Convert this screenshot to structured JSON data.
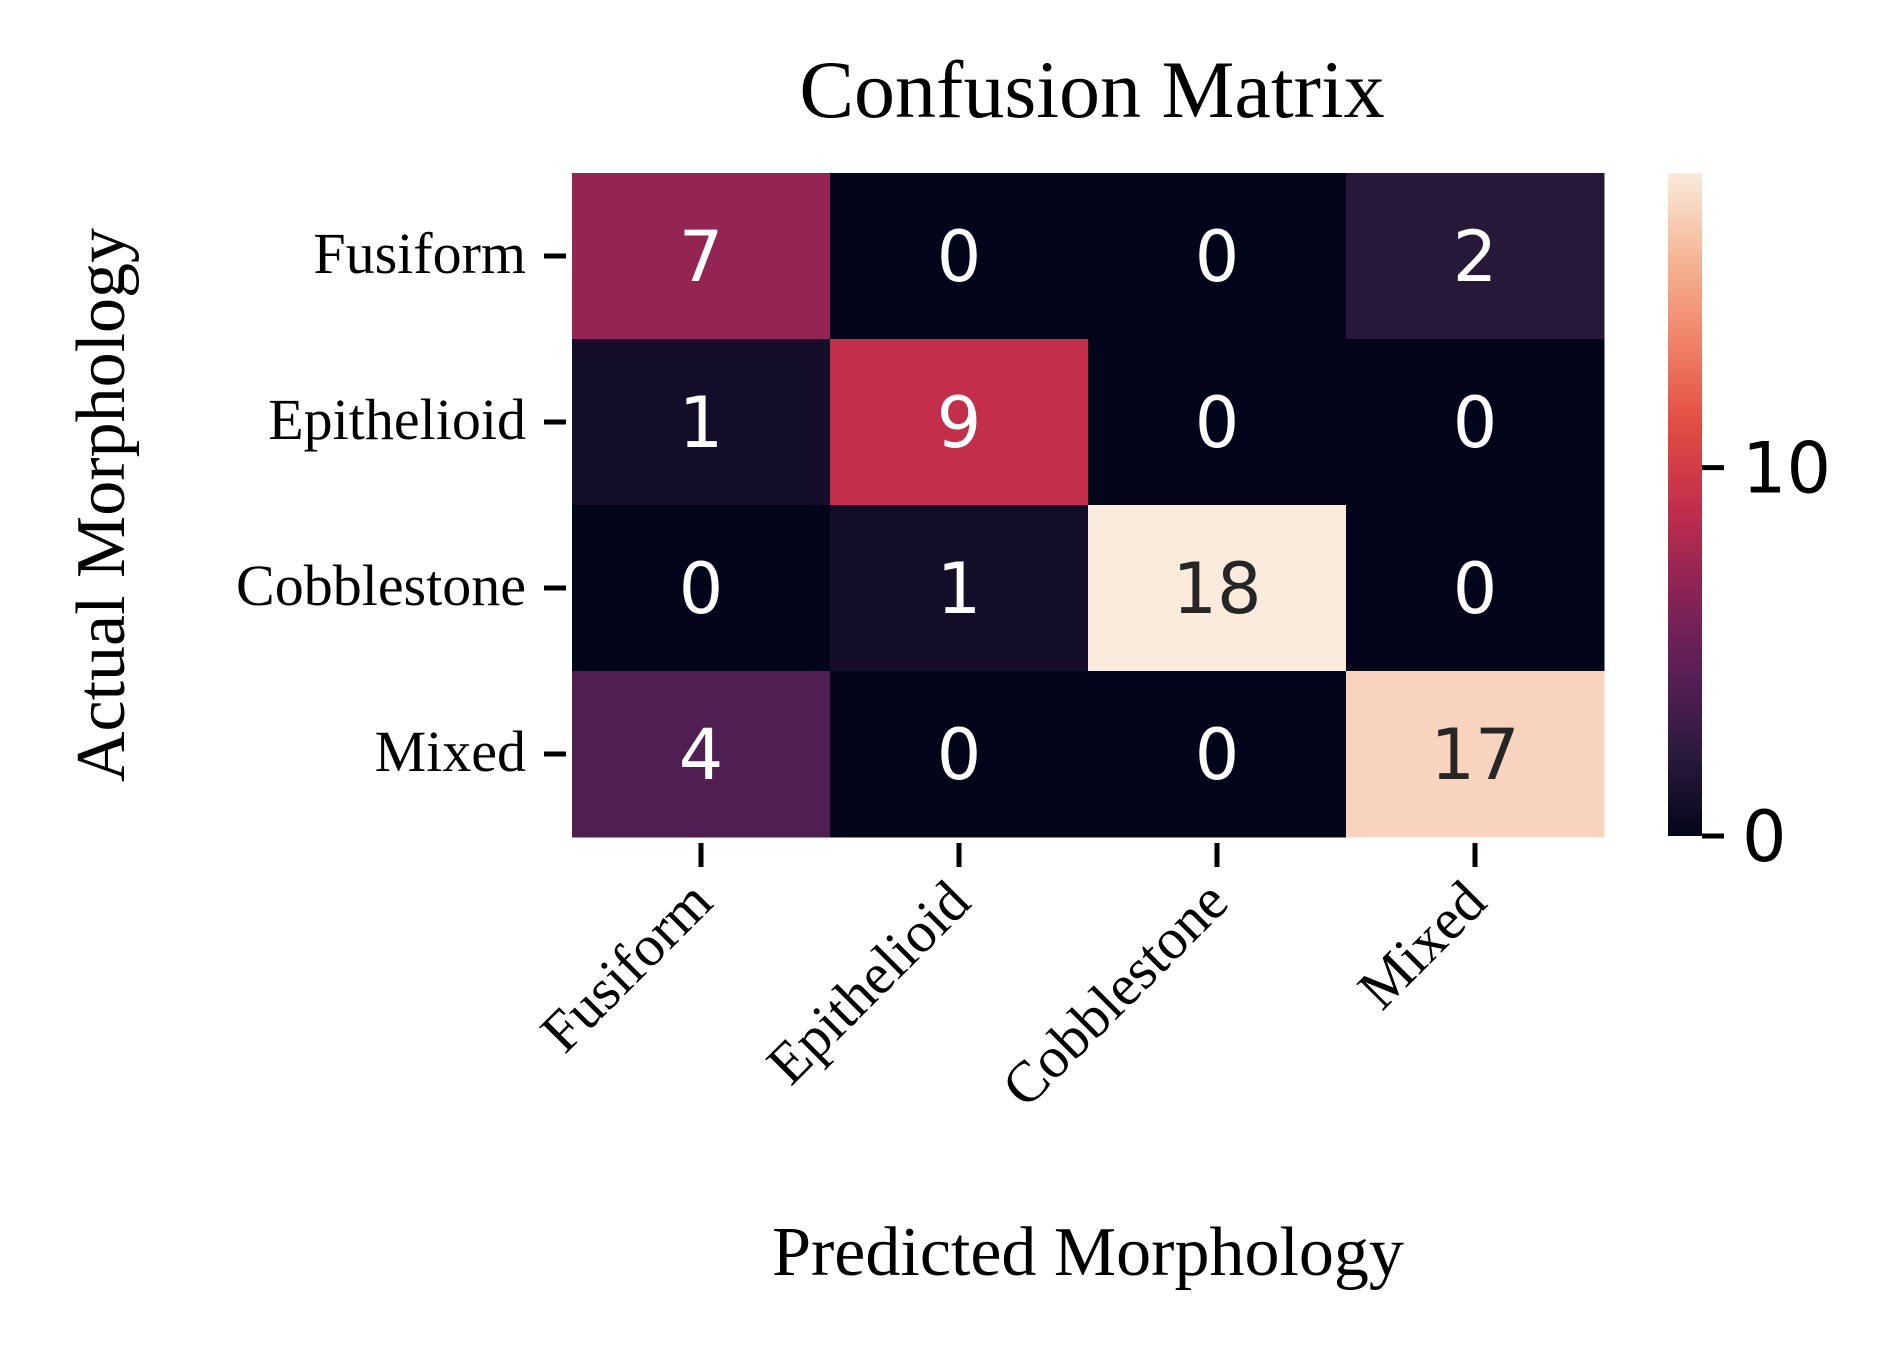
{
  "chart_data": {
    "type": "heatmap",
    "title": "Confusion Matrix",
    "xlabel": "Predicted Morphology",
    "ylabel": "Actual Morphology",
    "x_categories": [
      "Fusiform",
      "Epithelioid",
      "Cobblestone",
      "Mixed"
    ],
    "y_categories": [
      "Fusiform",
      "Epithelioid",
      "Cobblestone",
      "Mixed"
    ],
    "values": [
      [
        7,
        0,
        0,
        2
      ],
      [
        1,
        9,
        0,
        0
      ],
      [
        0,
        1,
        18,
        0
      ],
      [
        4,
        0,
        0,
        17
      ]
    ],
    "colorbar": {
      "ticks": [
        0,
        10
      ],
      "range": [
        0,
        18
      ]
    },
    "colormap": "rocket",
    "grid": false
  }
}
